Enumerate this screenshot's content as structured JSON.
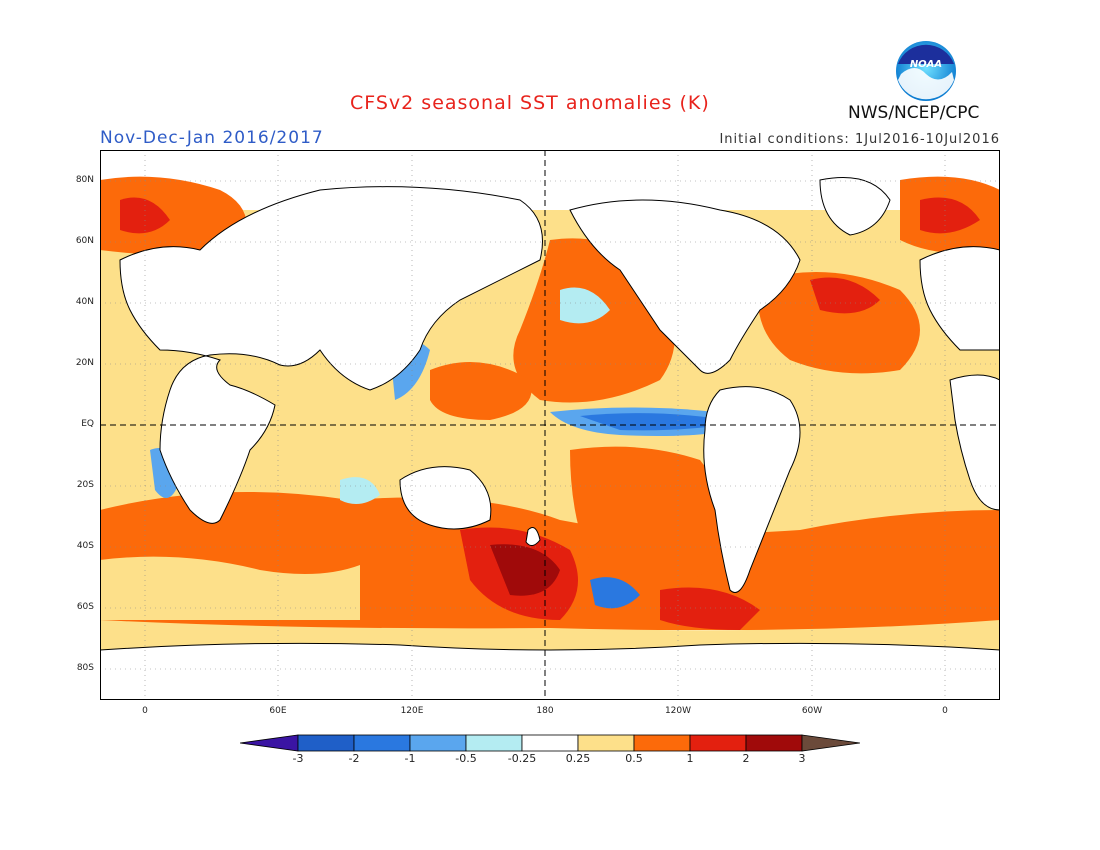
{
  "header": {
    "title": "CFSv2 seasonal SST anomalies (K)",
    "period": "Nov-Dec-Jan 2016/2017",
    "initial_conditions": "Initial conditions: 1Jul2016-10Jul2016",
    "agency": "NWS/NCEP/CPC",
    "logo_text": "NOAA"
  },
  "map": {
    "projection": "equirectangular",
    "lon_range": [
      -20,
      380
    ],
    "lat_range": [
      -90,
      90
    ],
    "lat_labels": [
      "80N",
      "60N",
      "40N",
      "20N",
      "EQ",
      "20S",
      "40S",
      "60S",
      "80S"
    ],
    "lon_labels": [
      "0",
      "60E",
      "120E",
      "180",
      "120W",
      "60W",
      "0"
    ]
  },
  "colorbar": {
    "labels": [
      "-3",
      "-2",
      "-1",
      "-0.5",
      "-0.25",
      "0.25",
      "0.5",
      "1",
      "2",
      "3"
    ],
    "colors": [
      "#3a14a3",
      "#1f5fc8",
      "#2a78e0",
      "#5aa6ee",
      "#b4ecf2",
      "#ffffff",
      "#fde08a",
      "#fc6a0a",
      "#e3200f",
      "#a00a0a",
      "#6b4a3a"
    ]
  }
}
